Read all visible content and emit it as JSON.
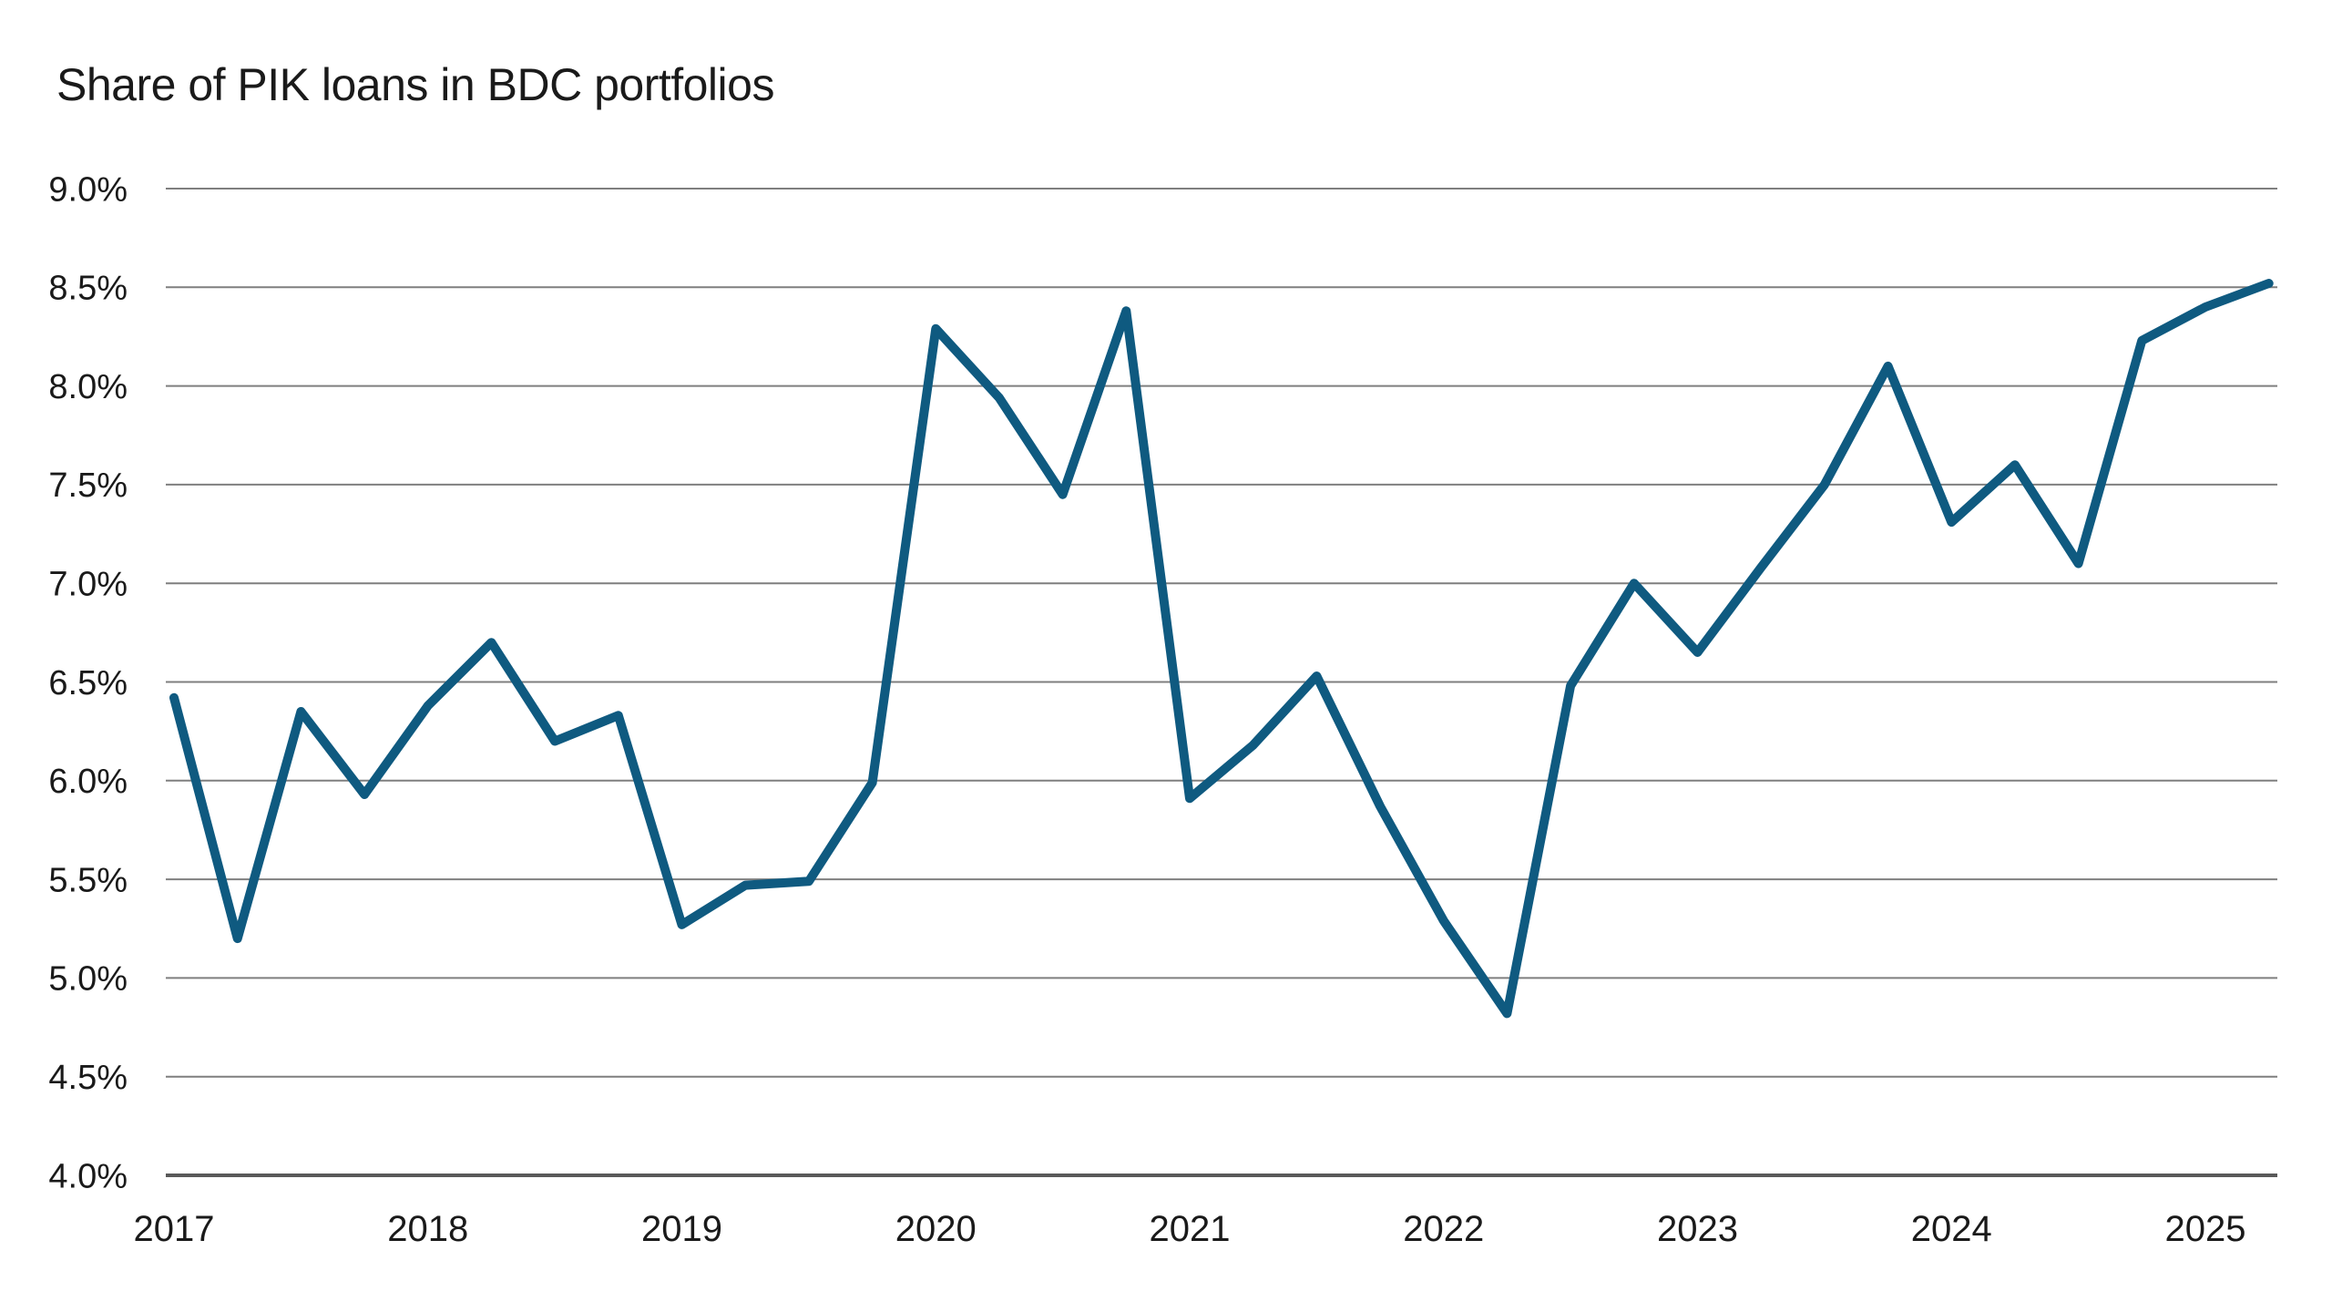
{
  "page": {
    "title": "Share of PIK loans in BDC portfolios"
  },
  "chart_data": {
    "type": "line",
    "title": "Share of PIK loans in BDC portfolios",
    "subtitle": "",
    "xlabel": "",
    "ylabel": "",
    "legend": "none",
    "grid": "horizontal",
    "ylim": [
      4.0,
      9.0
    ],
    "xlim": [
      2017.0,
      2025.25
    ],
    "y_ticks": [
      {
        "label": "9.0%",
        "value": 9.0
      },
      {
        "label": "8.5%",
        "value": 8.5
      },
      {
        "label": "8.0%",
        "value": 8.0
      },
      {
        "label": "7.5%",
        "value": 7.5
      },
      {
        "label": "7.0%",
        "value": 7.0
      },
      {
        "label": "6.5%",
        "value": 6.5
      },
      {
        "label": "6.0%",
        "value": 6.0
      },
      {
        "label": "5.5%",
        "value": 5.5
      },
      {
        "label": "5.0%",
        "value": 5.0
      },
      {
        "label": "4.5%",
        "value": 4.5
      },
      {
        "label": "4.0%",
        "value": 4.0
      }
    ],
    "x_ticks": [
      {
        "label": "2017",
        "value": 2017
      },
      {
        "label": "2018",
        "value": 2018
      },
      {
        "label": "2019",
        "value": 2019
      },
      {
        "label": "2020",
        "value": 2020
      },
      {
        "label": "2021",
        "value": 2021
      },
      {
        "label": "2022",
        "value": 2022
      },
      {
        "label": "2023",
        "value": 2023
      },
      {
        "label": "2024",
        "value": 2024
      },
      {
        "label": "2025",
        "value": 2025
      }
    ],
    "colors": {
      "line": "#0F5A80",
      "gridline": "#7f7f7f",
      "baseline_axis": "#595959",
      "text": "#1a1a1a"
    },
    "series": [
      {
        "name": "Share of PIK loans in BDC portfolios",
        "unit": "%",
        "frequency": "quarterly",
        "quarters": [
          "2017Q1",
          "2017Q2",
          "2017Q3",
          "2017Q4",
          "2018Q1",
          "2018Q2",
          "2018Q3",
          "2018Q4",
          "2019Q1",
          "2019Q2",
          "2019Q3",
          "2019Q4",
          "2020Q1",
          "2020Q2",
          "2020Q3",
          "2020Q4",
          "2021Q1",
          "2021Q2",
          "2021Q3",
          "2021Q4",
          "2022Q1",
          "2022Q2",
          "2022Q3",
          "2022Q4",
          "2023Q1",
          "2023Q2",
          "2023Q3",
          "2023Q4",
          "2024Q1",
          "2024Q2",
          "2024Q3",
          "2024Q4",
          "2025Q1",
          "2025Q2"
        ],
        "values": [
          6.42,
          5.2,
          6.35,
          5.93,
          6.38,
          6.7,
          6.2,
          6.33,
          5.27,
          5.47,
          5.49,
          5.99,
          8.29,
          7.94,
          7.45,
          8.38,
          5.91,
          6.18,
          6.53,
          5.87,
          5.29,
          4.82,
          6.48,
          7.0,
          6.65,
          7.08,
          7.5,
          8.1,
          7.31,
          7.6,
          7.1,
          8.23,
          8.4,
          8.52
        ]
      }
    ]
  }
}
